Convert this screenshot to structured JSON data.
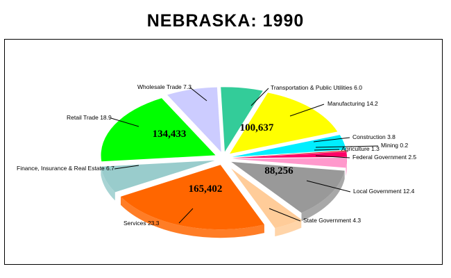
{
  "chart_data": {
    "type": "pie",
    "title": "NEBRASKA:  1990",
    "legend": "none",
    "slices": [
      {
        "label": "Transportation & Public Utilities 6.0",
        "share": 6.0,
        "color": "#33cc99"
      },
      {
        "label": "Manufacturing  14.2",
        "share": 14.2,
        "color": "#ffff00",
        "value_label": "100,637"
      },
      {
        "label": "Construction  3.8",
        "share": 3.8,
        "color": "#00eeff"
      },
      {
        "label": "Mining  0.2",
        "share": 0.2,
        "color": "#cc0000"
      },
      {
        "label": "Agriculture  1.3",
        "share": 1.3,
        "color": "#ff0066"
      },
      {
        "label": "Federal Government 2.5",
        "share": 2.5,
        "color": "#ff99cc"
      },
      {
        "label": "Local Government  12.4",
        "share": 12.4,
        "color": "#999999",
        "value_label": "88,256"
      },
      {
        "label": "State Government 4.3",
        "share": 4.3,
        "color": "#ffcc99"
      },
      {
        "label": "Services 23.3",
        "share": 23.3,
        "color": "#ff6600",
        "value_label": "165,402"
      },
      {
        "label": "Finance, Insurance & Real Estate 6.7",
        "share": 6.7,
        "color": "#99cccc"
      },
      {
        "label": "Retail Trade 18.9",
        "share": 18.9,
        "color": "#00ff00",
        "value_label": "134,433"
      },
      {
        "label": "Wholesale Trade 7.3",
        "share": 7.3,
        "color": "#ccccff"
      }
    ]
  }
}
